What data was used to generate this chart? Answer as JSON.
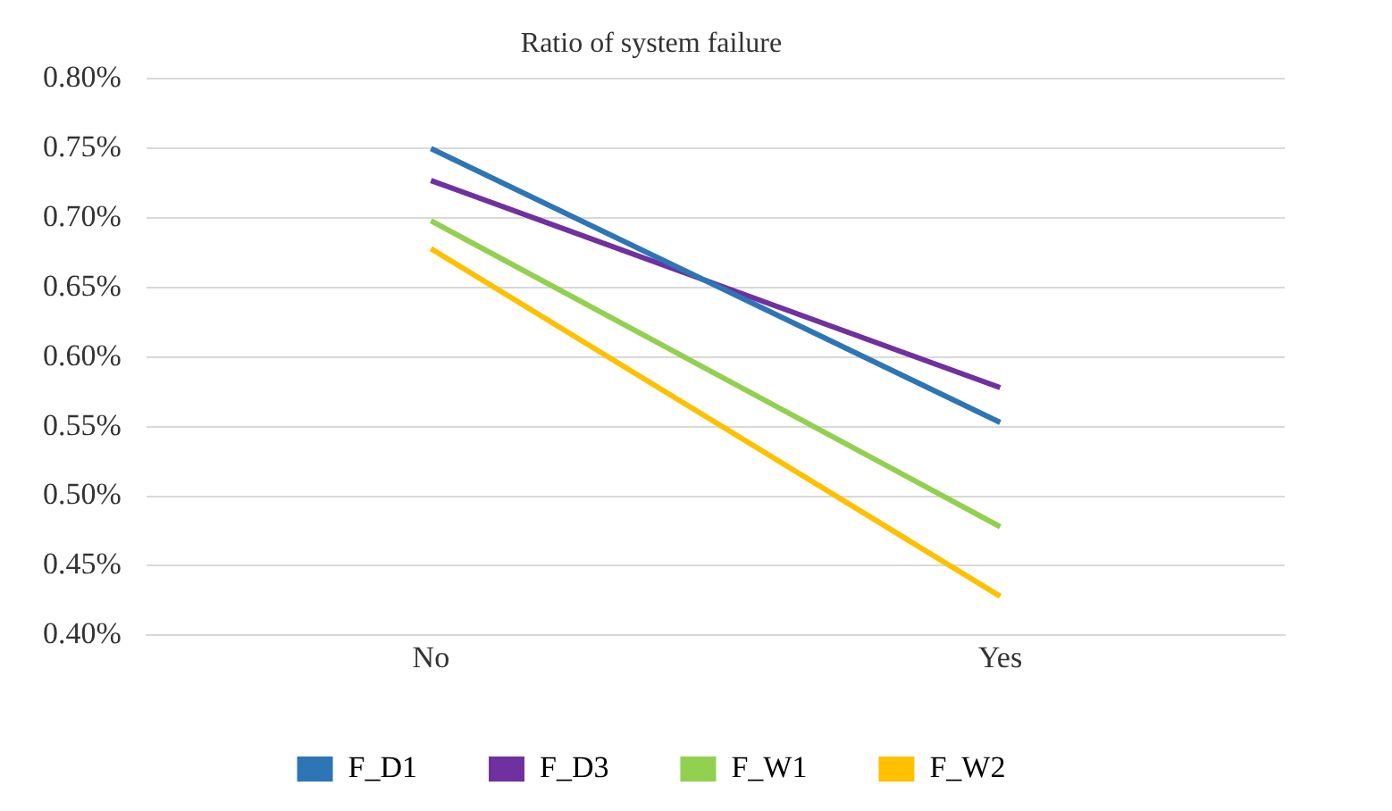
{
  "chart_data": {
    "type": "line",
    "title": "Ratio of system failure",
    "categories": [
      "No",
      "Yes"
    ],
    "series": [
      {
        "name": "F_D1",
        "color": "#2e75b6",
        "values": [
          0.75,
          0.553
        ]
      },
      {
        "name": "F_D3",
        "color": "#7030a0",
        "values": [
          0.727,
          0.578
        ]
      },
      {
        "name": "F_W1",
        "color": "#92d050",
        "values": [
          0.698,
          0.478
        ]
      },
      {
        "name": "F_W2",
        "color": "#ffc000",
        "values": [
          0.678,
          0.428
        ]
      }
    ],
    "ylim": [
      0.4,
      0.8
    ],
    "yticks": [
      {
        "value": 0.4,
        "label": "0.40%"
      },
      {
        "value": 0.45,
        "label": "0.45%"
      },
      {
        "value": 0.5,
        "label": "0.50%"
      },
      {
        "value": 0.55,
        "label": "0.55%"
      },
      {
        "value": 0.6,
        "label": "0.60%"
      },
      {
        "value": 0.65,
        "label": "0.65%"
      },
      {
        "value": 0.7,
        "label": "0.70%"
      },
      {
        "value": 0.75,
        "label": "0.75%"
      },
      {
        "value": 0.8,
        "label": "0.80%"
      }
    ],
    "grid": "y",
    "legend": "bottom",
    "marker": "none",
    "line_style": "solid"
  }
}
